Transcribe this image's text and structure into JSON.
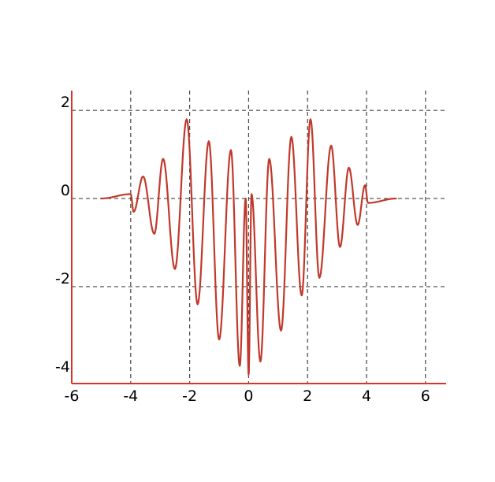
{
  "chart_data": {
    "type": "line",
    "title": "",
    "xlabel": "",
    "ylabel": "",
    "xlim": [
      -6,
      6.7
    ],
    "ylim": [
      -4.2,
      2.45
    ],
    "x_ticks": [
      -6,
      -4,
      -2,
      0,
      2,
      4,
      6
    ],
    "x_tick_labels": [
      "-6",
      "-4",
      "-2",
      "0",
      "2",
      "4",
      "6"
    ],
    "y_ticks": [
      2,
      0,
      -2,
      -4
    ],
    "y_tick_labels": [
      "2",
      "0",
      "-2",
      "-4"
    ],
    "grid": true,
    "grid_style": "dashed",
    "grid_x": [
      -4,
      -2,
      0,
      2,
      4,
      6
    ],
    "grid_y": [
      2,
      0,
      -2
    ],
    "legend": "none",
    "colors": {
      "line": "#c0392b",
      "axis": "#d9342b",
      "grid": "#444444",
      "text": "#000000"
    },
    "series": [
      {
        "x": [
          -5.0,
          -4.0,
          -3.9,
          -3.58,
          -3.2,
          -2.9,
          -2.5,
          -2.1,
          -1.73,
          -1.35,
          -1.0,
          -0.6,
          -0.3,
          -0.1,
          0.0,
          0.1,
          0.4,
          0.7,
          1.1,
          1.45,
          1.8,
          2.1,
          2.4,
          2.8,
          3.1,
          3.4,
          3.7,
          3.95,
          4.05,
          5.0
        ],
        "y": [
          0.0,
          0.1,
          -0.3,
          0.5,
          -0.8,
          0.9,
          -1.6,
          1.8,
          -2.4,
          1.3,
          -3.2,
          1.1,
          -3.8,
          0.0,
          -4.0,
          0.1,
          -3.7,
          0.9,
          -3.0,
          1.4,
          -2.2,
          1.8,
          -1.8,
          1.2,
          -1.1,
          0.7,
          -0.6,
          0.3,
          -0.1,
          0.0
        ]
      }
    ]
  }
}
